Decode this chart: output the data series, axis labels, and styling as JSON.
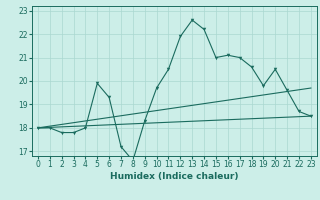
{
  "xlabel": "Humidex (Indice chaleur)",
  "xlim": [
    -0.5,
    23.5
  ],
  "ylim": [
    16.8,
    23.2
  ],
  "yticks": [
    17,
    18,
    19,
    20,
    21,
    22,
    23
  ],
  "xticks": [
    0,
    1,
    2,
    3,
    4,
    5,
    6,
    7,
    8,
    9,
    10,
    11,
    12,
    13,
    14,
    15,
    16,
    17,
    18,
    19,
    20,
    21,
    22,
    23
  ],
  "bg_color": "#cceee8",
  "line_color": "#1a6b5e",
  "grid_color": "#aad8d0",
  "line1_x": [
    0,
    1,
    2,
    3,
    4,
    5,
    6,
    7,
    8,
    9,
    10,
    11,
    12,
    13,
    14,
    15,
    16,
    17,
    18,
    19,
    20,
    21,
    22,
    23
  ],
  "line1_y": [
    18.0,
    18.0,
    17.8,
    17.8,
    18.0,
    19.9,
    19.3,
    17.2,
    16.6,
    18.3,
    19.7,
    20.5,
    21.9,
    22.6,
    22.2,
    21.0,
    21.1,
    21.0,
    20.6,
    19.8,
    20.5,
    19.6,
    18.7,
    18.5
  ],
  "line2_x": [
    0,
    23
  ],
  "line2_y": [
    18.0,
    19.7
  ],
  "line3_x": [
    0,
    23
  ],
  "line3_y": [
    18.0,
    18.5
  ],
  "title_fontsize": 7,
  "axis_fontsize": 6.5,
  "tick_fontsize": 5.5
}
